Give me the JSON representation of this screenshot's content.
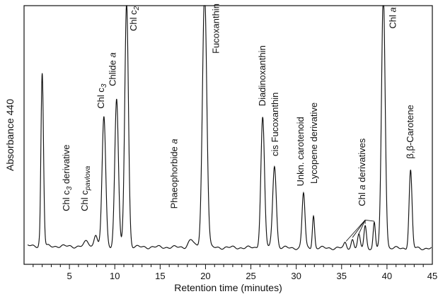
{
  "chart_data": {
    "type": "line",
    "title": "",
    "xlabel": "Retention time (minutes)",
    "ylabel": "Absorbance 440",
    "xlim": [
      0,
      45
    ],
    "ylim": [
      0,
      1
    ],
    "x_ticks": [
      5,
      10,
      15,
      20,
      25,
      30,
      35,
      40,
      45
    ],
    "x_tick_labels": [
      "5",
      "10",
      "15",
      "20",
      "25",
      "30",
      "35",
      "40",
      "45"
    ],
    "grid": false,
    "legend": "none",
    "line_color": "#111111",
    "series": [
      {
        "peaks": [
          {
            "x": 2.0,
            "h": 0.69,
            "w": 0.14
          },
          {
            "x": 6.9,
            "h": 0.02,
            "w": 0.25
          },
          {
            "x": 7.9,
            "h": 0.05,
            "w": 0.18
          },
          {
            "x": 8.8,
            "h": 0.52,
            "w": 0.2
          },
          {
            "x": 10.2,
            "h": 0.59,
            "w": 0.2
          },
          {
            "x": 11.3,
            "h": 0.98,
            "w": 0.2
          },
          {
            "x": 18.4,
            "h": 0.03,
            "w": 0.3
          },
          {
            "x": 19.9,
            "h": 1.02,
            "w": 0.24
          },
          {
            "x": 26.3,
            "h": 0.52,
            "w": 0.2
          },
          {
            "x": 27.6,
            "h": 0.33,
            "w": 0.2
          },
          {
            "x": 30.8,
            "h": 0.22,
            "w": 0.16
          },
          {
            "x": 31.9,
            "h": 0.13,
            "w": 0.12
          },
          {
            "x": 35.4,
            "h": 0.02,
            "w": 0.14
          },
          {
            "x": 36.2,
            "h": 0.035,
            "w": 0.14
          },
          {
            "x": 36.9,
            "h": 0.05,
            "w": 0.14
          },
          {
            "x": 37.6,
            "h": 0.09,
            "w": 0.14
          },
          {
            "x": 38.6,
            "h": 0.1,
            "w": 0.12
          },
          {
            "x": 39.6,
            "h": 1.02,
            "w": 0.2
          },
          {
            "x": 42.6,
            "h": 0.31,
            "w": 0.16
          }
        ]
      }
    ],
    "annotations": [
      {
        "text": "Chl c",
        "sub": "3",
        "italic_sub": true,
        "tail": " derivative",
        "x": 5.0,
        "y": 0.15
      },
      {
        "text": "Chl c",
        "sub": "pavlova",
        "italic_sub": true,
        "tail": "",
        "x": 7.0,
        "y": 0.15
      },
      {
        "text": "Chl c",
        "sub": "3",
        "italic_sub": true,
        "tail": "",
        "x": 8.8,
        "y": 0.56
      },
      {
        "text": "Chlide ",
        "italic_tail": "a",
        "x": 10.1,
        "y": 0.65
      },
      {
        "text": "Chl c",
        "sub": "2",
        "italic_sub": true,
        "tail": "",
        "x": 12.4,
        "y": 0.87
      },
      {
        "text": "Phaeophorbide ",
        "italic_tail": "a",
        "x": 16.9,
        "y": 0.16
      },
      {
        "text": "Fucoxanthin",
        "x": 21.5,
        "y": 0.78
      },
      {
        "text": "Diadinoxanthin",
        "x": 26.6,
        "y": 0.57
      },
      {
        "text": "cis Fucoxanthin",
        "x": 28.0,
        "y": 0.37
      },
      {
        "text": "Unkn. carotenoid",
        "x": 30.8,
        "y": 0.25
      },
      {
        "text": "Lycopene derivative",
        "x": 32.3,
        "y": 0.26
      },
      {
        "text": "Chl ",
        "italic_tail": "a",
        "tail2": " derivatives",
        "x": 37.6,
        "y": 0.17
      },
      {
        "text": "Chl ",
        "italic_tail": "a",
        "x": 41.0,
        "y": 0.88
      },
      {
        "text": "β,β-Carotene",
        "x": 42.9,
        "y": 0.36
      }
    ],
    "pointer_lines": [
      {
        "from": [
          37.6,
          0.115
        ],
        "to": [
          35.5,
          0.03
        ]
      },
      {
        "from": [
          37.6,
          0.115
        ],
        "to": [
          36.2,
          0.045
        ]
      },
      {
        "from": [
          37.6,
          0.115
        ],
        "to": [
          36.9,
          0.06
        ]
      },
      {
        "from": [
          37.6,
          0.115
        ],
        "to": [
          37.6,
          0.1
        ]
      },
      {
        "from": [
          37.6,
          0.115
        ],
        "to": [
          38.6,
          0.11
        ]
      }
    ]
  }
}
